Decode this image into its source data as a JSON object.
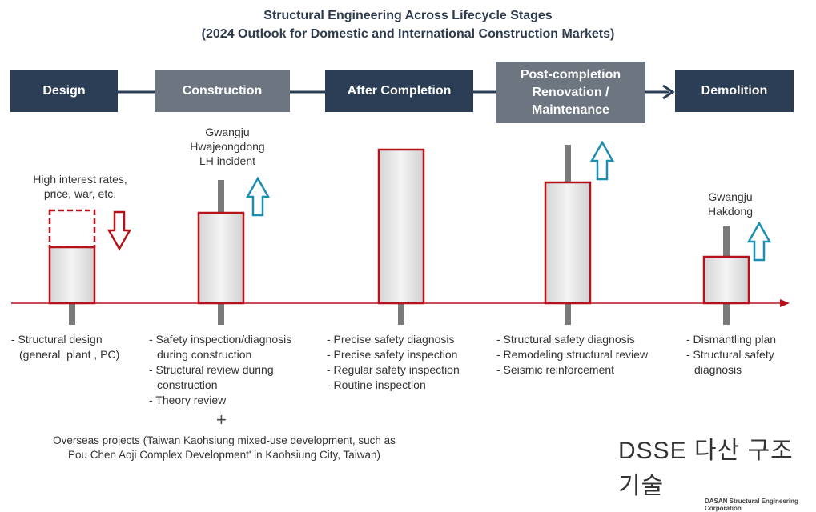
{
  "title": {
    "line1": "Structural Engineering Across Lifecycle Stages",
    "line2": "(2024 Outlook for Domestic and International Construction Markets)"
  },
  "stages": [
    "Design",
    "Construction",
    "After Completion",
    "Post-completion\nRenovation /\nMaintenance",
    "Demolition"
  ],
  "annotations": {
    "design": "High interest rates,\nprice, war, etc.",
    "construction": "Gwangju\nHwajeongdong\nLH incident",
    "demolition": "Gwangju\nHakdong"
  },
  "bullets": {
    "design": [
      "- Structural design (general, plant , PC)"
    ],
    "construction": [
      "- Safety inspection/diagnosis during construction",
      "- Structural review during construction",
      "- Theory review"
    ],
    "after": [
      "- Precise safety diagnosis",
      "- Precise safety inspection",
      "- Regular safety inspection",
      "- Routine inspection"
    ],
    "post": [
      "- Structural safety diagnosis",
      "- Remodeling structural review",
      "- Seismic reinforcement"
    ],
    "demolition": [
      "- Dismantling plan",
      "- Structural safety diagnosis"
    ]
  },
  "plus": "+",
  "overseas": "Overseas projects (Taiwan Kaohsiung mixed-use development, such as\nPou Chen Aoji Complex Development' in Kaohsiung City, Taiwan)",
  "logo": {
    "main": "DSSE 다산 구조기술",
    "sub": "DASAN Structural Engineering Corporation"
  },
  "colors": {
    "dark_stage": "#2c3e56",
    "grey_stage": "#6d7581",
    "candle_border": "#b5121b",
    "up_arrow": "#1a8fb0",
    "down_arrow": "#b5121b"
  },
  "trends": {
    "design": "down",
    "construction": "up",
    "after": "none",
    "post": "up",
    "demolition": "up"
  }
}
